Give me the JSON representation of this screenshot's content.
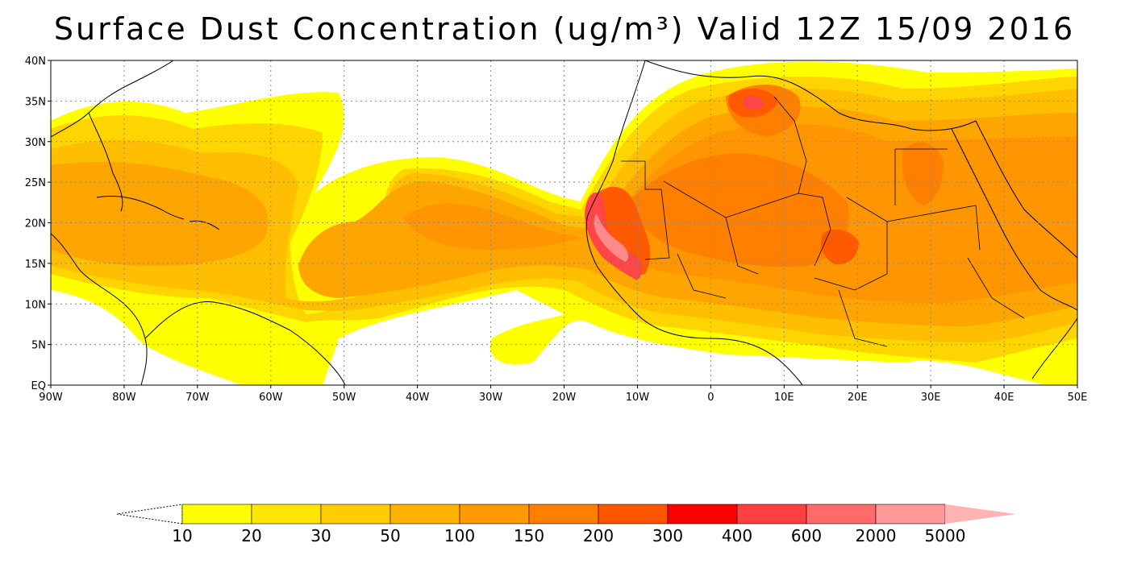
{
  "title": "Surface Dust Concentration (ug/m³) Valid 12Z 15/09 2016",
  "map": {
    "region": "Tropical Atlantic, Caribbean, West/North Africa, Arabia",
    "lat_range": [
      0,
      40
    ],
    "lon_range": [
      -90,
      50
    ],
    "grid": "dotted",
    "lat_labels": [
      "40N",
      "35N",
      "30N",
      "25N",
      "20N",
      "15N",
      "10N",
      "5N",
      "EQ"
    ],
    "lat_values": [
      40,
      35,
      30,
      25,
      20,
      15,
      10,
      5,
      0
    ],
    "lon_labels": [
      "90W",
      "80W",
      "70W",
      "60W",
      "50W",
      "40W",
      "30W",
      "20W",
      "10W",
      "0",
      "10E",
      "20E",
      "30E",
      "40E",
      "50E"
    ],
    "lon_values": [
      -90,
      -80,
      -70,
      -60,
      -50,
      -40,
      -30,
      -20,
      -10,
      0,
      10,
      20,
      30,
      40,
      50
    ],
    "features": [
      {
        "name": "Saharan air layer plume over Atlantic",
        "level": "50-150 ug/m3"
      },
      {
        "name": "Western Sahara / Mauritania coast maximum",
        "level": "400-2000 ug/m3"
      },
      {
        "name": "Chad / Bodele region maximum",
        "level": "300-600 ug/m3"
      },
      {
        "name": "Algeria / Tunisia maximum",
        "level": "400-600 ug/m3"
      }
    ]
  },
  "colorbar": {
    "levels": [
      "10",
      "20",
      "30",
      "50",
      "100",
      "150",
      "200",
      "300",
      "400",
      "600",
      "2000",
      "5000"
    ],
    "colors": [
      "#ffff00",
      "#ffe600",
      "#ffcc00",
      "#ffb300",
      "#ff9900",
      "#ff8000",
      "#ff5500",
      "#ff0000",
      "#ff4040",
      "#ff6b6b",
      "#ff9999",
      "#ffb3b3"
    ]
  }
}
